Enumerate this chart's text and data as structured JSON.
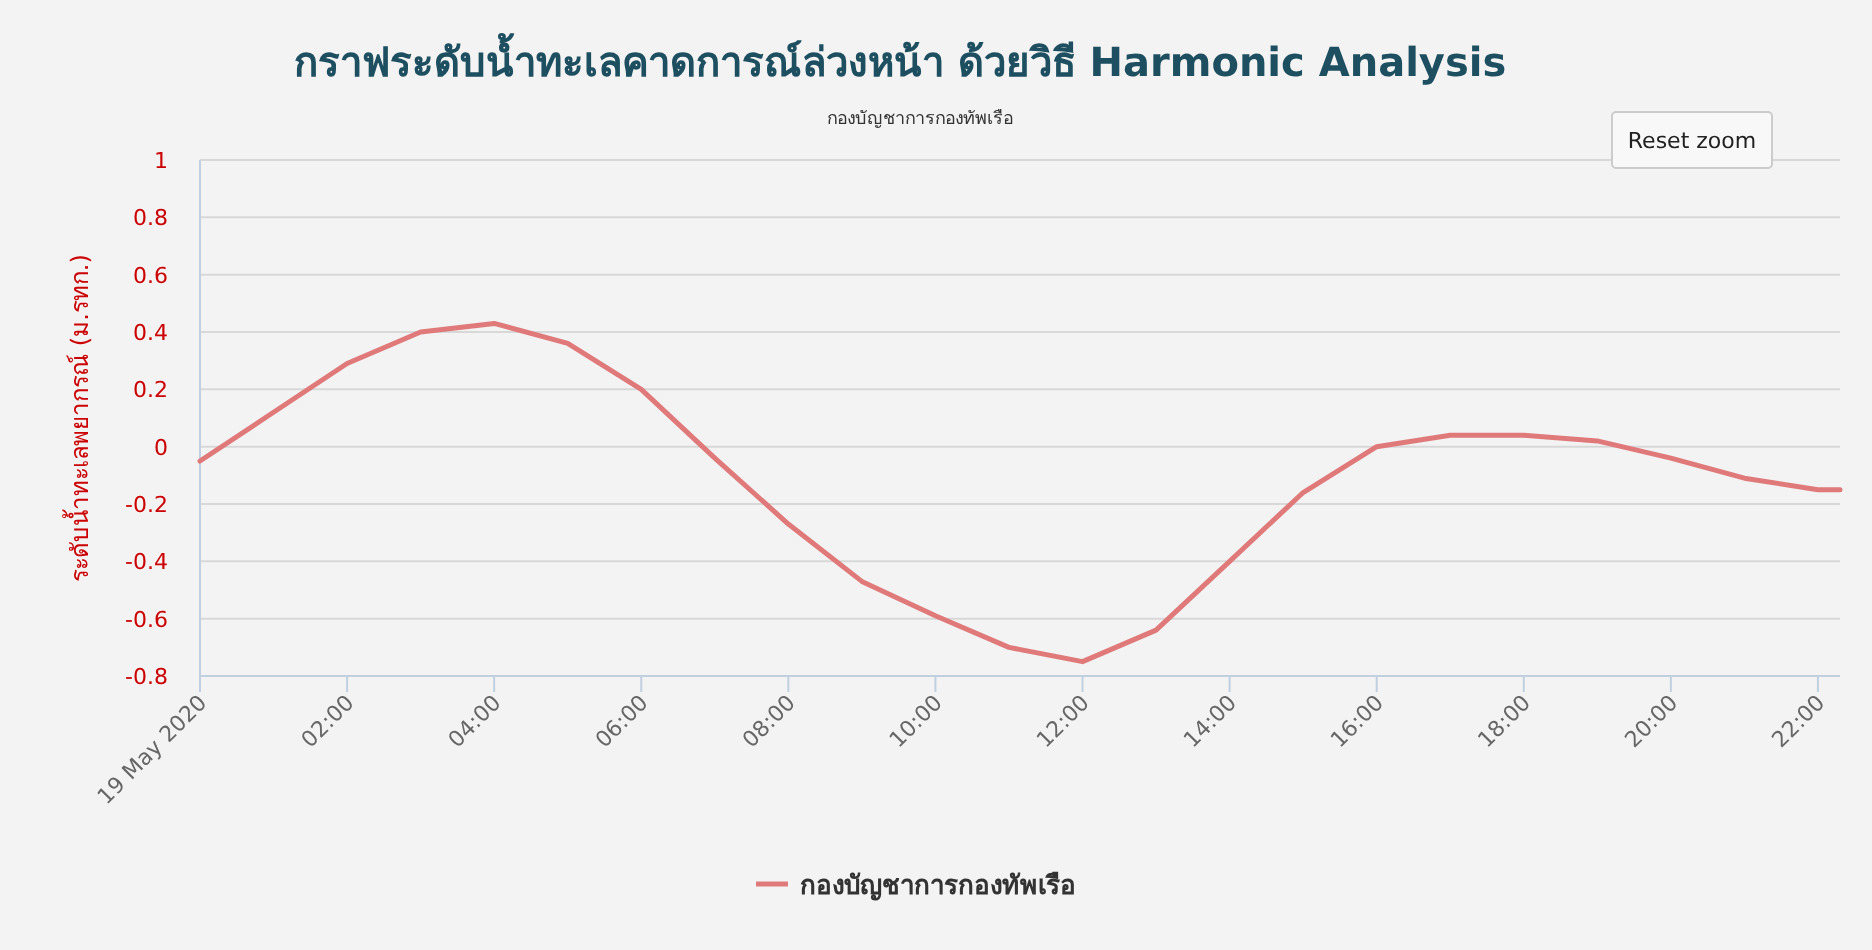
{
  "chart_data": {
    "type": "line",
    "title": "กราฟระดับน้ำทะเลคาดการณ์ล่วงหน้า ด้วยวิธี Harmonic Analysis",
    "subtitle": "กองบัญชาการกองทัพเรือ",
    "ylabel": "ระดับน้ำทะเลพยากรณ์ (ม.รทก.)",
    "annotations": [
      "Reset zoom"
    ],
    "series": [
      {
        "name": "กองบัญชาการกองทัพเรือ",
        "color": "#e07a7a",
        "x": [
          0,
          1,
          2,
          3,
          4,
          5,
          6,
          7,
          8,
          9,
          10,
          11,
          12,
          13,
          14,
          15,
          16,
          17,
          18,
          19,
          20,
          21,
          22,
          22.3
        ],
        "values": [
          -0.05,
          0.12,
          0.29,
          0.4,
          0.43,
          0.36,
          0.2,
          -0.04,
          -0.27,
          -0.47,
          -0.59,
          -0.7,
          -0.75,
          -0.64,
          -0.4,
          -0.16,
          0.0,
          0.04,
          0.04,
          0.02,
          -0.04,
          -0.11,
          -0.15,
          -0.15
        ]
      }
    ],
    "xlim": [
      0,
      22.3
    ],
    "xticks": [
      {
        "value": 0,
        "label": "19 May 2020"
      },
      {
        "value": 2,
        "label": "02:00"
      },
      {
        "value": 4,
        "label": "04:00"
      },
      {
        "value": 6,
        "label": "06:00"
      },
      {
        "value": 8,
        "label": "08:00"
      },
      {
        "value": 10,
        "label": "10:00"
      },
      {
        "value": 12,
        "label": "12:00"
      },
      {
        "value": 14,
        "label": "14:00"
      },
      {
        "value": 16,
        "label": "16:00"
      },
      {
        "value": 18,
        "label": "18:00"
      },
      {
        "value": 20,
        "label": "20:00"
      },
      {
        "value": 22,
        "label": "22:00"
      }
    ],
    "ylim": [
      -0.8,
      1
    ],
    "yticks": [
      -0.8,
      -0.6,
      -0.4,
      -0.2,
      0,
      0.2,
      0.4,
      0.6,
      0.8,
      1
    ],
    "grid": "y",
    "legend": "bottom",
    "line_style": "solid",
    "marker": "none"
  }
}
